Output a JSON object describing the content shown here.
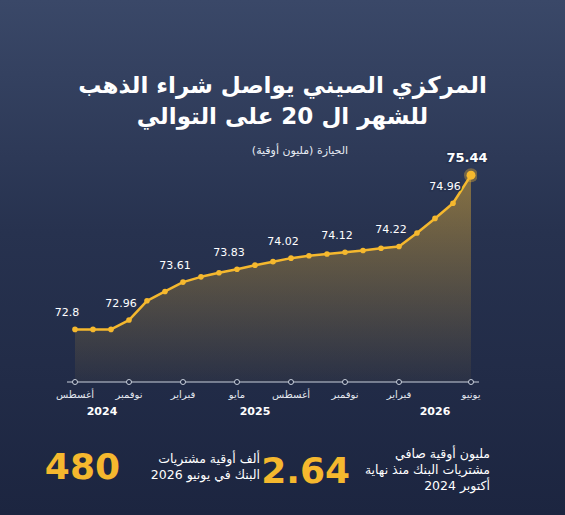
{
  "chart_data": {
    "type": "line",
    "title": "المركزي الصيني يواصل شراء الذهب للشهر ال 20 على التوالي",
    "subtitle": "الحيازة (مليون أوقية)",
    "categories": [
      "أغسطس",
      null,
      null,
      "نوفمبر",
      null,
      null,
      "فبراير",
      null,
      null,
      "مايو",
      null,
      null,
      "أغسطس",
      null,
      null,
      "نوفمبر",
      null,
      null,
      "فبراير",
      null,
      null,
      null,
      "يونيو"
    ],
    "values": [
      72.8,
      72.8,
      72.8,
      72.96,
      73.29,
      73.45,
      73.61,
      73.7,
      73.77,
      73.83,
      73.9,
      73.96,
      74.02,
      74.06,
      74.09,
      74.12,
      74.15,
      74.19,
      74.22,
      74.45,
      74.7,
      74.96,
      75.44
    ],
    "value_labels": [
      "72.8",
      null,
      null,
      "72.96",
      null,
      null,
      "73.61",
      null,
      null,
      "73.83",
      null,
      null,
      "74.02",
      null,
      null,
      "74.12",
      null,
      null,
      "74.22",
      null,
      null,
      "74.96",
      "75.44"
    ],
    "data_labels": true,
    "color": "#f5b82e",
    "ylim": [
      71.9,
      75.7
    ],
    "yticks": [],
    "tick_labels": "x",
    "years": [
      {
        "label": "2024",
        "from": 0,
        "to": 3
      },
      {
        "label": "2025",
        "from": 5,
        "to": 15
      },
      {
        "label": "2026",
        "from": 18,
        "to": 22
      }
    ],
    "stats": [
      {
        "value": 2.64,
        "text": "مليون أوقية صافي مشتريات البنك منذ نهاية أكتوبر 2024"
      },
      {
        "value": 480,
        "text": "ألف أوقية مشتريات البنك في يونيو 2026"
      }
    ]
  }
}
